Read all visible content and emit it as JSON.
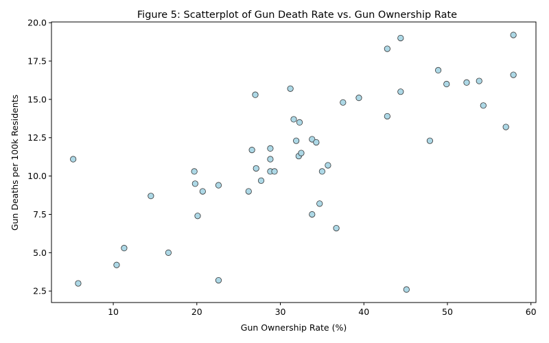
{
  "chart_data": {
    "type": "scatter",
    "title": "Figure 5: Scatterplot of Gun Death Rate vs. Gun Ownership Rate",
    "xlabel": "Gun Ownership Rate (%)",
    "ylabel": "Gun Deaths per 100k Residents",
    "xlim": [
      2.6,
      60.6
    ],
    "ylim": [
      1.75,
      20.05
    ],
    "xticks": [
      10,
      20,
      30,
      40,
      50,
      60
    ],
    "yticks": [
      2.5,
      5.0,
      7.5,
      10.0,
      12.5,
      15.0,
      17.5,
      20.0
    ],
    "xtick_labels": [
      "10",
      "20",
      "30",
      "40",
      "50",
      "60"
    ],
    "ytick_labels": [
      "2.5",
      "5.0",
      "7.5",
      "10.0",
      "12.5",
      "15.0",
      "17.5",
      "20.0"
    ],
    "grid": false,
    "marker_color": "#add8e6",
    "marker_edge": "#333333",
    "points": [
      {
        "x": 5.2,
        "y": 11.1
      },
      {
        "x": 5.8,
        "y": 3.0
      },
      {
        "x": 10.4,
        "y": 4.2
      },
      {
        "x": 11.3,
        "y": 5.3
      },
      {
        "x": 14.5,
        "y": 8.7
      },
      {
        "x": 16.6,
        "y": 5.0
      },
      {
        "x": 19.7,
        "y": 10.3
      },
      {
        "x": 19.8,
        "y": 9.5
      },
      {
        "x": 20.1,
        "y": 7.4
      },
      {
        "x": 20.7,
        "y": 9.0
      },
      {
        "x": 22.6,
        "y": 9.4
      },
      {
        "x": 22.6,
        "y": 3.2
      },
      {
        "x": 26.2,
        "y": 9.0
      },
      {
        "x": 26.6,
        "y": 11.7
      },
      {
        "x": 27.0,
        "y": 15.3
      },
      {
        "x": 27.1,
        "y": 10.5
      },
      {
        "x": 27.7,
        "y": 9.7
      },
      {
        "x": 28.8,
        "y": 11.8
      },
      {
        "x": 28.8,
        "y": 11.1
      },
      {
        "x": 28.8,
        "y": 10.3
      },
      {
        "x": 29.3,
        "y": 10.3
      },
      {
        "x": 31.2,
        "y": 15.7
      },
      {
        "x": 31.6,
        "y": 13.7
      },
      {
        "x": 31.9,
        "y": 12.3
      },
      {
        "x": 32.2,
        "y": 11.3
      },
      {
        "x": 32.3,
        "y": 13.5
      },
      {
        "x": 32.5,
        "y": 11.5
      },
      {
        "x": 33.8,
        "y": 12.4
      },
      {
        "x": 33.8,
        "y": 7.5
      },
      {
        "x": 34.3,
        "y": 12.2
      },
      {
        "x": 34.7,
        "y": 8.2
      },
      {
        "x": 35.0,
        "y": 10.3
      },
      {
        "x": 35.7,
        "y": 10.7
      },
      {
        "x": 36.7,
        "y": 6.6
      },
      {
        "x": 37.5,
        "y": 14.8
      },
      {
        "x": 39.4,
        "y": 15.1
      },
      {
        "x": 42.8,
        "y": 18.3
      },
      {
        "x": 42.8,
        "y": 13.9
      },
      {
        "x": 44.4,
        "y": 19.0
      },
      {
        "x": 44.4,
        "y": 15.5
      },
      {
        "x": 45.1,
        "y": 2.6
      },
      {
        "x": 47.9,
        "y": 12.3
      },
      {
        "x": 48.9,
        "y": 16.9
      },
      {
        "x": 49.9,
        "y": 16.0
      },
      {
        "x": 52.3,
        "y": 16.1
      },
      {
        "x": 53.8,
        "y": 16.2
      },
      {
        "x": 54.3,
        "y": 14.6
      },
      {
        "x": 57.0,
        "y": 13.2
      },
      {
        "x": 57.9,
        "y": 19.2
      },
      {
        "x": 57.9,
        "y": 16.6
      }
    ]
  }
}
